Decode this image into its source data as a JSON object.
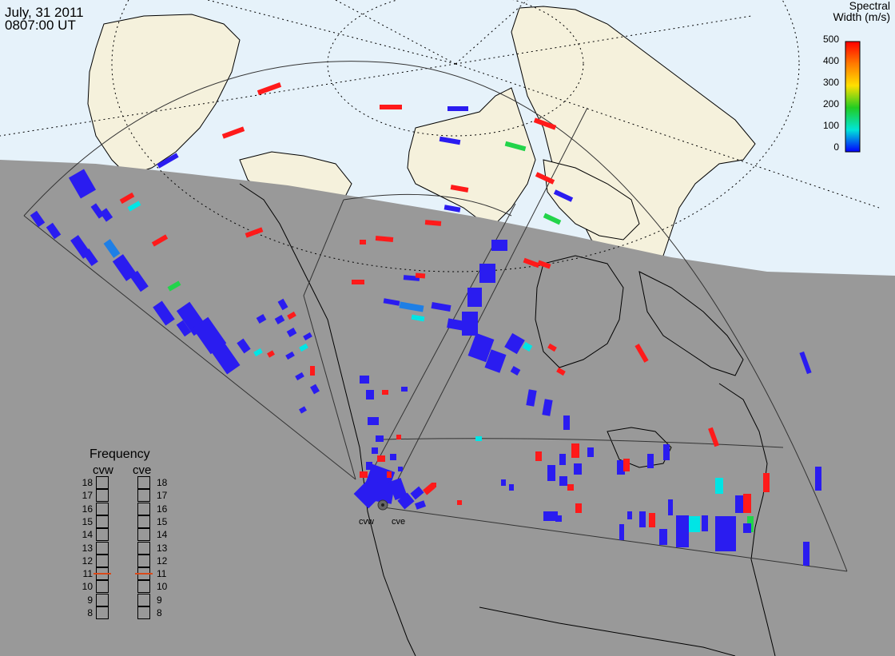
{
  "timestamp": {
    "date": "July, 31 2011",
    "time": "0807:00 UT"
  },
  "colorbar": {
    "title_line1": "Spectral",
    "title_line2": "Width (m/s)",
    "ticks": [
      "500",
      "400",
      "300",
      "200",
      "100",
      "0"
    ],
    "gradient_colors": [
      "#ff0000",
      "#ff7a00",
      "#ffe000",
      "#22cc22",
      "#00e5d8",
      "#0000ff"
    ]
  },
  "frequency_panel": {
    "title": "Frequency",
    "radars": [
      {
        "name": "cvw",
        "selected": "11"
      },
      {
        "name": "cve",
        "selected": "11"
      }
    ],
    "ticks": [
      "18",
      "17",
      "16",
      "15",
      "14",
      "13",
      "12",
      "11",
      "10",
      "9",
      "8"
    ]
  },
  "sites": [
    {
      "name": "cvw"
    },
    {
      "name": "cve"
    }
  ],
  "colors": {
    "ocean_day": "#e6f2fa",
    "land_day": "#f5f1dc",
    "night": "#999999",
    "blue": "#2a1cf0",
    "red": "#ff1a1a",
    "cyan": "#00e5e5",
    "green": "#22d44a",
    "mid_blue": "#1e7fe6"
  }
}
